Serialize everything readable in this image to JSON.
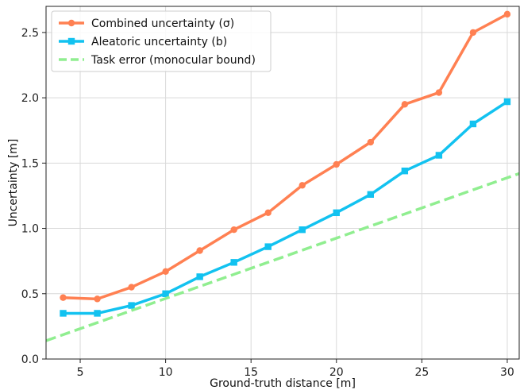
{
  "chart_data": {
    "type": "line",
    "xlabel": "Ground-truth distance [m]",
    "ylabel": "Uncertainty [m]",
    "xlim": [
      3,
      30.7
    ],
    "ylim": [
      0,
      2.7
    ],
    "xticks": [
      5,
      10,
      15,
      20,
      25,
      30
    ],
    "yticks": [
      0.0,
      0.5,
      1.0,
      1.5,
      2.0,
      2.5
    ],
    "ytick_labels": [
      "0.0",
      "0.5",
      "1.0",
      "1.5",
      "2.0",
      "2.5"
    ],
    "grid": true,
    "legend_position": "top-left",
    "series": [
      {
        "name": "Combined uncertainty (σ)",
        "color": "#ff8052",
        "marker": "circle",
        "style": "solid",
        "x": [
          4,
          6,
          8,
          10,
          12,
          14,
          16,
          18,
          20,
          22,
          24,
          26,
          28,
          30
        ],
        "y": [
          0.47,
          0.46,
          0.55,
          0.67,
          0.83,
          0.99,
          1.12,
          1.33,
          1.49,
          1.66,
          1.95,
          2.04,
          2.5,
          2.64
        ]
      },
      {
        "name": "Aleatoric uncertainty (b)",
        "color": "#12c2f0",
        "marker": "square",
        "style": "solid",
        "x": [
          4,
          6,
          8,
          10,
          12,
          14,
          16,
          18,
          20,
          22,
          24,
          26,
          28,
          30
        ],
        "y": [
          0.35,
          0.35,
          0.41,
          0.5,
          0.63,
          0.74,
          0.86,
          0.99,
          1.12,
          1.26,
          1.44,
          1.56,
          1.8,
          1.97
        ]
      },
      {
        "name": "Task error (monocular bound)",
        "color": "#90ee90",
        "marker": "none",
        "style": "dashed",
        "x": [
          3,
          30.7
        ],
        "y": [
          0.14,
          1.42
        ]
      }
    ]
  }
}
